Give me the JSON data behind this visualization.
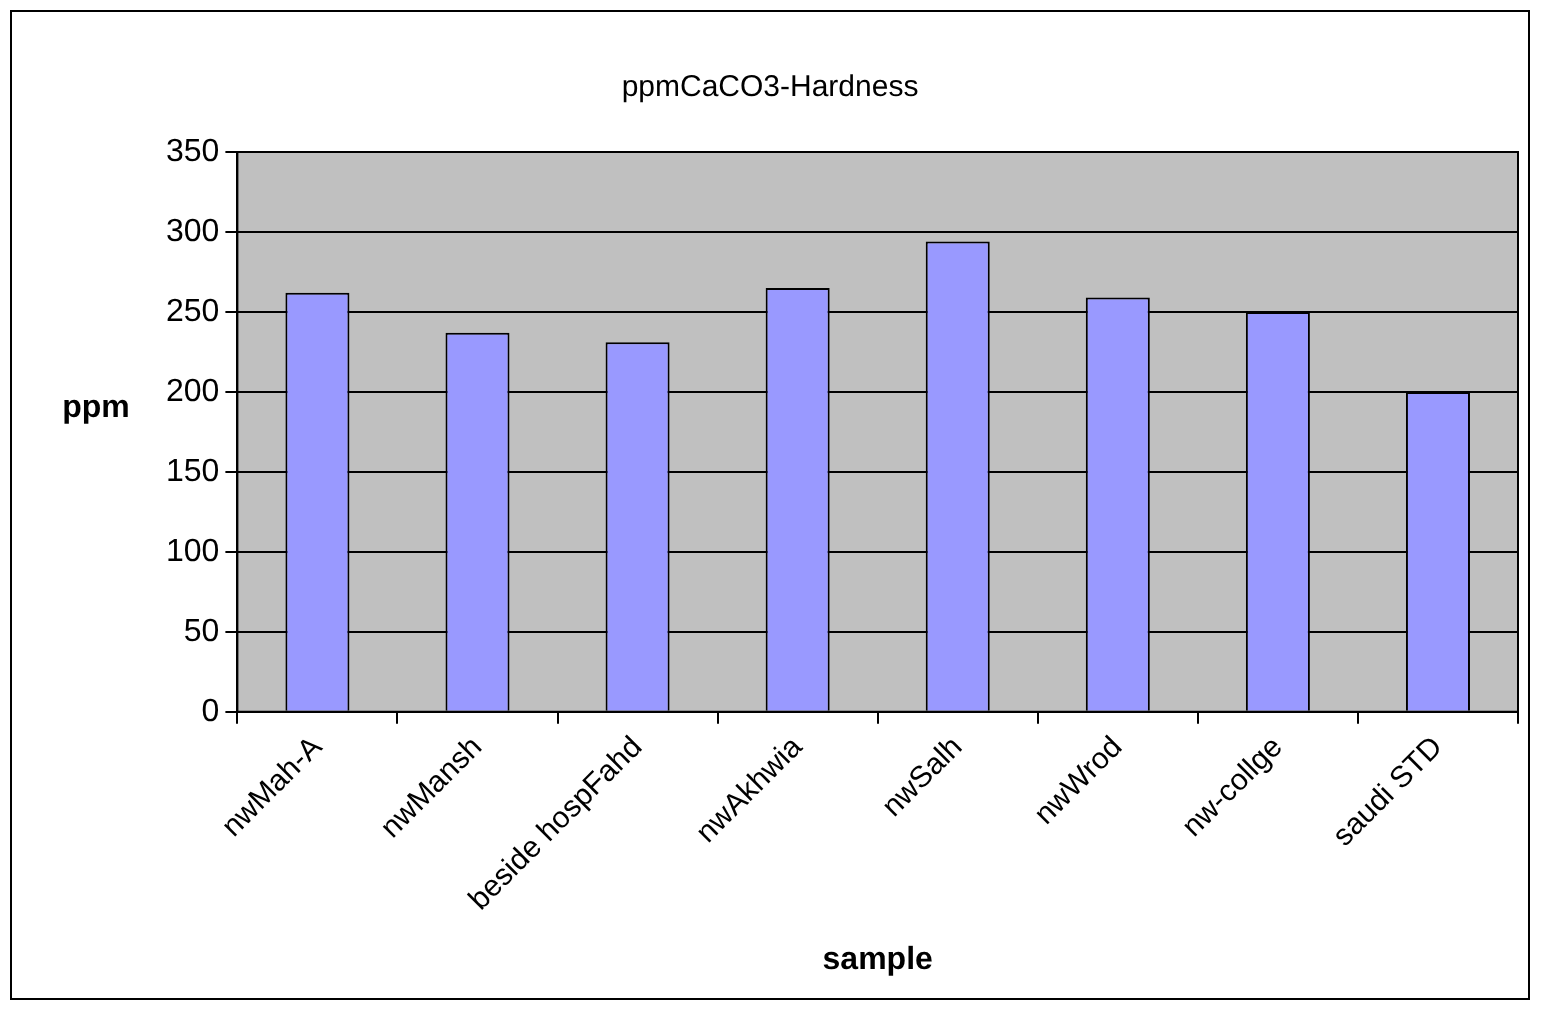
{
  "chart_data": {
    "type": "bar",
    "title": "ppmCaCO3-Hardness",
    "xlabel": "sample",
    "ylabel": "ppm",
    "categories": [
      "nwMah-A",
      "nwMansh",
      "beside hospFahd",
      "nwAkhwia",
      "nwSalh",
      "nwWrod",
      "nw-collge",
      "saudi STD"
    ],
    "values": [
      262,
      237,
      231,
      265,
      294,
      259,
      250,
      200
    ],
    "color": "#9999ff",
    "ylim": [
      0,
      350
    ],
    "yticks": [
      0,
      50,
      100,
      150,
      200,
      250,
      300,
      350
    ],
    "grid": "y",
    "legend": false
  }
}
